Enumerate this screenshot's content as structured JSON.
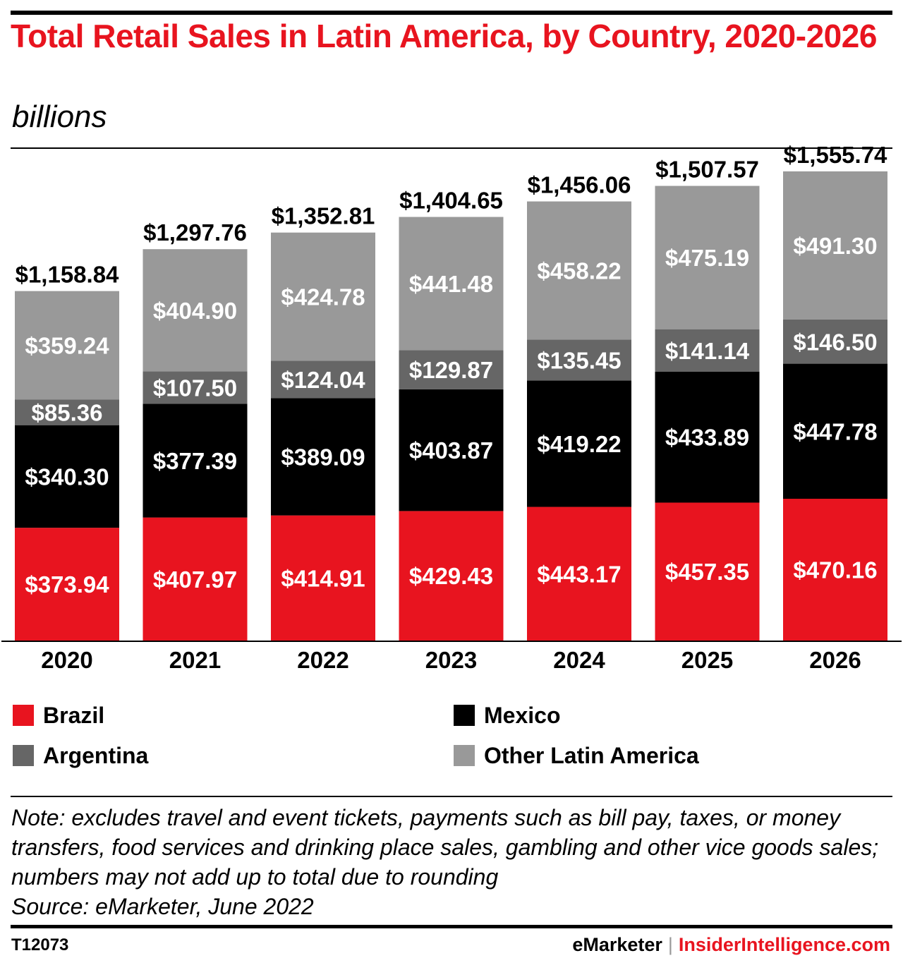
{
  "title": "Total Retail Sales in Latin America, by Country, 2020-2026",
  "subtitle": "billions",
  "chart_data": {
    "type": "bar",
    "stacked": true,
    "title": "Total Retail Sales in Latin America, by Country, 2020-2026",
    "subtitle": "billions",
    "categories": [
      "2020",
      "2021",
      "2022",
      "2023",
      "2024",
      "2025",
      "2026"
    ],
    "series": [
      {
        "name": "Brazil",
        "color": "#e8141f",
        "text_color": "#ffffff",
        "values": [
          373.94,
          407.97,
          414.91,
          429.43,
          443.17,
          457.35,
          470.16
        ],
        "labels": [
          "$373.94",
          "$407.97",
          "$414.91",
          "$429.43",
          "$443.17",
          "$457.35",
          "$470.16"
        ]
      },
      {
        "name": "Mexico",
        "color": "#000000",
        "text_color": "#ffffff",
        "values": [
          340.3,
          377.39,
          389.09,
          403.87,
          419.22,
          433.89,
          447.78
        ],
        "labels": [
          "$340.30",
          "$377.39",
          "$389.09",
          "$403.87",
          "$419.22",
          "$433.89",
          "$447.78"
        ]
      },
      {
        "name": "Argentina",
        "color": "#666666",
        "text_color": "#ffffff",
        "values": [
          85.36,
          107.5,
          124.04,
          129.87,
          135.45,
          141.14,
          146.5
        ],
        "labels": [
          "$85.36",
          "$107.50",
          "$124.04",
          "$129.87",
          "$135.45",
          "$141.14",
          "$146.50"
        ]
      },
      {
        "name": "Other Latin America",
        "color": "#999999",
        "text_color": "#ffffff",
        "values": [
          359.24,
          404.9,
          424.78,
          441.48,
          458.22,
          475.19,
          491.3
        ],
        "labels": [
          "$359.24",
          "$404.90",
          "$424.78",
          "$441.48",
          "$458.22",
          "$475.19",
          "$491.30"
        ]
      }
    ],
    "totals": [
      1158.84,
      1297.76,
      1352.81,
      1404.65,
      1456.06,
      1507.57,
      1555.74
    ],
    "total_labels": [
      "$1,158.84",
      "$1,297.76",
      "$1,352.81",
      "$1,404.65",
      "$1,456.06",
      "$1,507.57",
      "$1,555.74"
    ],
    "ylim": [
      0,
      1800
    ],
    "grid": false,
    "legend_position": "bottom"
  },
  "legend": [
    {
      "label": "Brazil",
      "color": "#e8141f"
    },
    {
      "label": "Mexico",
      "color": "#000000"
    },
    {
      "label": "Argentina",
      "color": "#666666"
    },
    {
      "label": "Other Latin America",
      "color": "#999999"
    }
  ],
  "note": "Note: excludes travel and event tickets, payments such as bill pay, taxes, or money transfers, food services and drinking place sales, gambling and other vice goods sales; numbers may not add up to total due to rounding",
  "source": "Source: eMarketer, June 2022",
  "footer": {
    "id": "T12073",
    "brand_a": "eMarketer",
    "separator": "|",
    "brand_b": "InsiderIntelligence.com"
  }
}
